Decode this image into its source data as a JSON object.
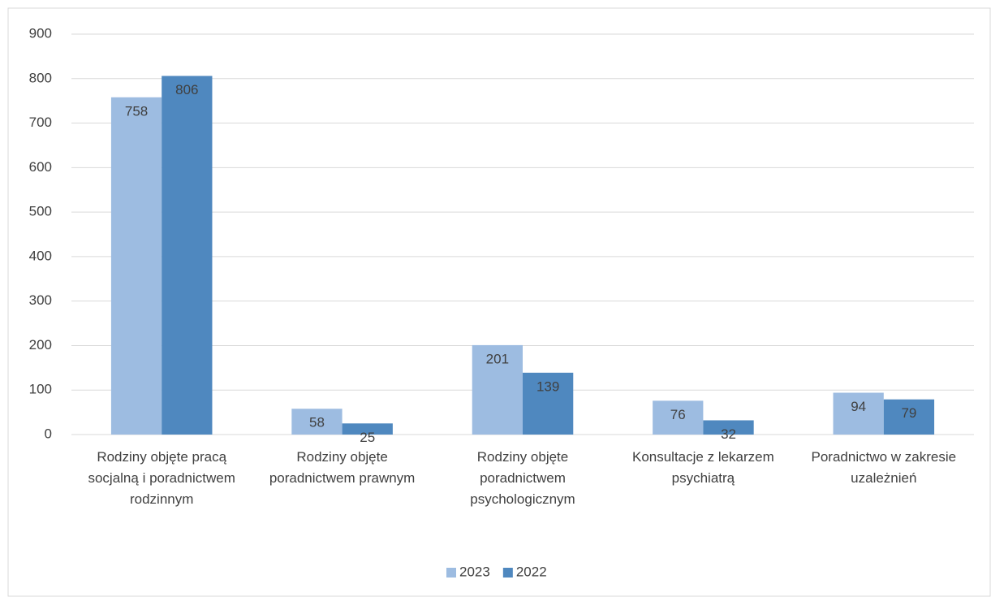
{
  "chart_data": {
    "type": "bar",
    "categories": [
      "Rodziny objęte pracą socjalną i poradnictwem rodzinnym",
      "Rodziny objęte poradnictwem prawnym",
      "Rodziny objęte poradnictwem psychologicznym",
      "Konsultacje z lekarzem psychiatrą",
      "Poradnictwo w zakresie uzależnień"
    ],
    "series": [
      {
        "name": "2023",
        "color": "#9dbce1",
        "values": [
          758,
          58,
          201,
          76,
          94
        ]
      },
      {
        "name": "2022",
        "color": "#4f88bf",
        "values": [
          806,
          25,
          139,
          32,
          79
        ]
      }
    ],
    "ylim": [
      0,
      900
    ],
    "yticks": [
      0,
      100,
      200,
      300,
      400,
      500,
      600,
      700,
      800,
      900
    ],
    "grid": true,
    "legend": "bottom"
  }
}
